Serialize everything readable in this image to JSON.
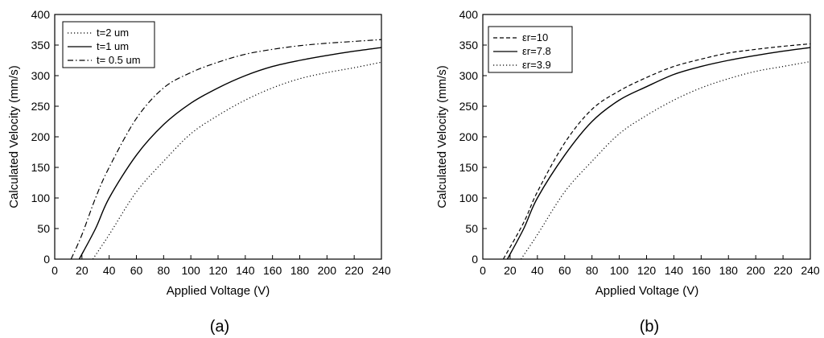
{
  "chart_data": [
    {
      "type": "line",
      "caption": "(a)",
      "xlabel": "Applied Voltage (V)",
      "ylabel": "Calculated Velocity (mm/s)",
      "xlim": [
        0,
        240
      ],
      "ylim": [
        0,
        400
      ],
      "xticks": [
        0,
        20,
        40,
        60,
        80,
        100,
        120,
        140,
        160,
        180,
        200,
        220,
        240
      ],
      "yticks": [
        0,
        50,
        100,
        150,
        200,
        250,
        300,
        350,
        400
      ],
      "legend_position": "top-left",
      "series": [
        {
          "name": "t=2 um",
          "style": "dotted",
          "x": [
            28,
            40,
            60,
            80,
            100,
            120,
            140,
            160,
            180,
            200,
            220,
            240
          ],
          "y": [
            0,
            40,
            110,
            160,
            205,
            235,
            260,
            280,
            295,
            305,
            313,
            322
          ]
        },
        {
          "name": "t=1 um",
          "style": "solid",
          "x": [
            18,
            30,
            40,
            60,
            80,
            100,
            120,
            140,
            160,
            180,
            200,
            220,
            240
          ],
          "y": [
            0,
            50,
            100,
            170,
            220,
            255,
            280,
            300,
            315,
            325,
            333,
            340,
            346
          ]
        },
        {
          "name": "t= 0.5 um",
          "style": "dashdot",
          "x": [
            12,
            20,
            30,
            40,
            60,
            80,
            100,
            120,
            140,
            160,
            180,
            200,
            220,
            240
          ],
          "y": [
            0,
            40,
            100,
            150,
            230,
            280,
            305,
            322,
            335,
            343,
            349,
            353,
            356,
            359
          ]
        }
      ]
    },
    {
      "type": "line",
      "caption": "(b)",
      "xlabel": "Applied Voltage (V)",
      "ylabel": "Calculated Velocity (mm/s)",
      "xlim": [
        0,
        240
      ],
      "ylim": [
        0,
        400
      ],
      "xticks": [
        0,
        20,
        40,
        60,
        80,
        100,
        120,
        140,
        160,
        180,
        200,
        220,
        240
      ],
      "yticks": [
        0,
        50,
        100,
        150,
        200,
        250,
        300,
        350,
        400
      ],
      "legend_position": "top-left",
      "series": [
        {
          "name": "εr=10",
          "style": "dashed",
          "x": [
            15,
            30,
            40,
            60,
            80,
            100,
            120,
            140,
            160,
            180,
            200,
            220,
            240
          ],
          "y": [
            0,
            60,
            110,
            190,
            245,
            275,
            297,
            315,
            327,
            337,
            343,
            348,
            352
          ]
        },
        {
          "name": "εr=7.8",
          "style": "solid",
          "x": [
            18,
            30,
            40,
            60,
            80,
            100,
            120,
            140,
            160,
            180,
            200,
            220,
            240
          ],
          "y": [
            0,
            50,
            100,
            170,
            225,
            260,
            282,
            302,
            315,
            325,
            333,
            340,
            346
          ]
        },
        {
          "name": "εr=3.9",
          "style": "dotted",
          "x": [
            28,
            40,
            60,
            80,
            100,
            120,
            140,
            160,
            180,
            200,
            220,
            240
          ],
          "y": [
            0,
            40,
            110,
            160,
            205,
            235,
            260,
            280,
            295,
            307,
            315,
            323
          ]
        }
      ]
    }
  ]
}
